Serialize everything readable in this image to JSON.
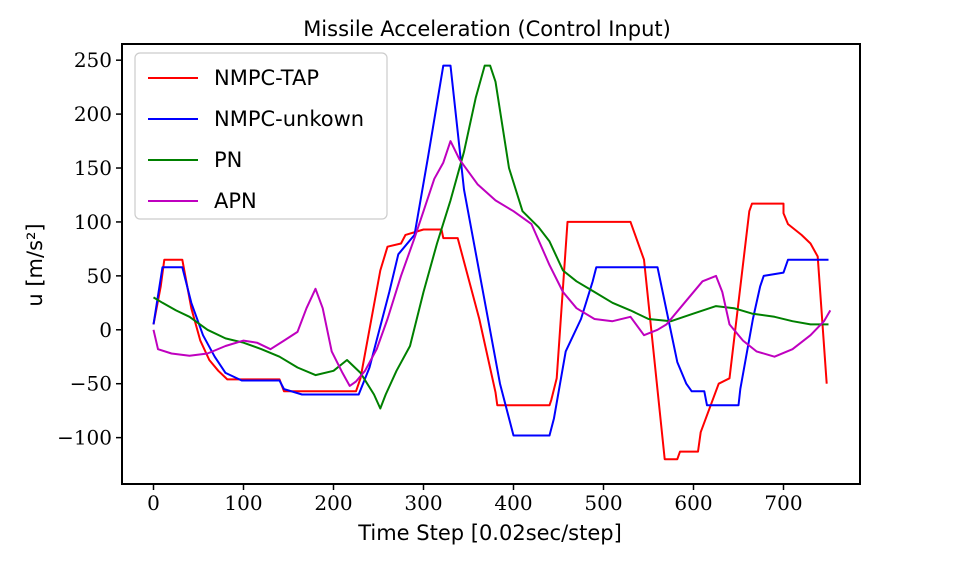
{
  "chart_data": {
    "type": "line",
    "title": "Missile Acceleration (Control Input)",
    "xlabel": "Time Step [0.02sec/step]",
    "ylabel": "u [m/s²]",
    "xlim": [
      -35,
      785
    ],
    "ylim": [
      -143,
      265
    ],
    "xticks": [
      0,
      100,
      200,
      300,
      400,
      500,
      600,
      700
    ],
    "yticks": [
      -100,
      -50,
      0,
      50,
      100,
      150,
      200,
      250
    ],
    "ytick_labels": [
      "−100",
      "−50",
      "0",
      "50",
      "100",
      "150",
      "200",
      "250"
    ],
    "grid": false,
    "legend_position": "top-left",
    "series": [
      {
        "name": "NMPC-TAP",
        "color": "#ff0000",
        "points": [
          [
            0,
            5
          ],
          [
            8,
            40
          ],
          [
            12,
            65
          ],
          [
            32,
            65
          ],
          [
            42,
            20
          ],
          [
            52,
            -10
          ],
          [
            62,
            -28
          ],
          [
            72,
            -38
          ],
          [
            82,
            -46
          ],
          [
            100,
            -46
          ],
          [
            115,
            -46
          ],
          [
            140,
            -46
          ],
          [
            145,
            -57
          ],
          [
            225,
            -57
          ],
          [
            230,
            -45
          ],
          [
            252,
            55
          ],
          [
            260,
            77
          ],
          [
            275,
            80
          ],
          [
            280,
            88
          ],
          [
            300,
            93
          ],
          [
            320,
            93
          ],
          [
            322,
            85
          ],
          [
            338,
            85
          ],
          [
            362,
            10
          ],
          [
            380,
            -58
          ],
          [
            382,
            -70
          ],
          [
            440,
            -70
          ],
          [
            442,
            -65
          ],
          [
            448,
            -45
          ],
          [
            460,
            100
          ],
          [
            530,
            100
          ],
          [
            545,
            65
          ],
          [
            568,
            -120
          ],
          [
            582,
            -120
          ],
          [
            585,
            -113
          ],
          [
            605,
            -113
          ],
          [
            608,
            -95
          ],
          [
            628,
            -50
          ],
          [
            640,
            -45
          ],
          [
            662,
            110
          ],
          [
            665,
            117
          ],
          [
            700,
            117
          ],
          [
            700,
            108
          ],
          [
            705,
            98
          ],
          [
            720,
            88
          ],
          [
            730,
            80
          ],
          [
            738,
            68
          ],
          [
            748,
            -50
          ]
        ]
      },
      {
        "name": "NMPC-unkown",
        "color": "#0000ff",
        "points": [
          [
            0,
            5
          ],
          [
            10,
            58
          ],
          [
            32,
            58
          ],
          [
            42,
            25
          ],
          [
            55,
            -5
          ],
          [
            68,
            -25
          ],
          [
            80,
            -40
          ],
          [
            98,
            -47
          ],
          [
            140,
            -47
          ],
          [
            145,
            -55
          ],
          [
            165,
            -60
          ],
          [
            228,
            -60
          ],
          [
            240,
            -35
          ],
          [
            262,
            35
          ],
          [
            272,
            70
          ],
          [
            290,
            88
          ],
          [
            305,
            160
          ],
          [
            322,
            245
          ],
          [
            330,
            245
          ],
          [
            345,
            130
          ],
          [
            365,
            40
          ],
          [
            385,
            -50
          ],
          [
            400,
            -98
          ],
          [
            440,
            -98
          ],
          [
            445,
            -82
          ],
          [
            458,
            -20
          ],
          [
            475,
            10
          ],
          [
            488,
            45
          ],
          [
            492,
            58
          ],
          [
            560,
            58
          ],
          [
            572,
            10
          ],
          [
            582,
            -30
          ],
          [
            592,
            -50
          ],
          [
            598,
            -57
          ],
          [
            612,
            -57
          ],
          [
            615,
            -70
          ],
          [
            650,
            -70
          ],
          [
            652,
            -55
          ],
          [
            666,
            10
          ],
          [
            674,
            40
          ],
          [
            678,
            50
          ],
          [
            700,
            53
          ],
          [
            705,
            65
          ],
          [
            750,
            65
          ]
        ]
      },
      {
        "name": "PN",
        "color": "#008000",
        "points": [
          [
            0,
            30
          ],
          [
            10,
            25
          ],
          [
            25,
            18
          ],
          [
            40,
            12
          ],
          [
            60,
            0
          ],
          [
            80,
            -8
          ],
          [
            100,
            -12
          ],
          [
            120,
            -18
          ],
          [
            140,
            -25
          ],
          [
            160,
            -35
          ],
          [
            180,
            -42
          ],
          [
            200,
            -38
          ],
          [
            215,
            -28
          ],
          [
            230,
            -40
          ],
          [
            245,
            -60
          ],
          [
            252,
            -73
          ],
          [
            258,
            -60
          ],
          [
            270,
            -38
          ],
          [
            285,
            -15
          ],
          [
            300,
            35
          ],
          [
            315,
            80
          ],
          [
            330,
            120
          ],
          [
            345,
            165
          ],
          [
            358,
            215
          ],
          [
            368,
            245
          ],
          [
            374,
            245
          ],
          [
            380,
            230
          ],
          [
            395,
            150
          ],
          [
            410,
            110
          ],
          [
            428,
            95
          ],
          [
            440,
            82
          ],
          [
            455,
            55
          ],
          [
            470,
            45
          ],
          [
            490,
            35
          ],
          [
            510,
            25
          ],
          [
            530,
            18
          ],
          [
            550,
            10
          ],
          [
            575,
            8
          ],
          [
            600,
            15
          ],
          [
            625,
            22
          ],
          [
            645,
            20
          ],
          [
            665,
            15
          ],
          [
            690,
            12
          ],
          [
            710,
            8
          ],
          [
            730,
            5
          ],
          [
            750,
            5
          ]
        ]
      },
      {
        "name": "APN",
        "color": "#bf00bf",
        "points": [
          [
            0,
            0
          ],
          [
            5,
            -18
          ],
          [
            20,
            -22
          ],
          [
            40,
            -24
          ],
          [
            60,
            -22
          ],
          [
            80,
            -15
          ],
          [
            100,
            -10
          ],
          [
            115,
            -12
          ],
          [
            130,
            -18
          ],
          [
            145,
            -10
          ],
          [
            160,
            -2
          ],
          [
            170,
            20
          ],
          [
            180,
            38
          ],
          [
            188,
            20
          ],
          [
            198,
            -20
          ],
          [
            210,
            -40
          ],
          [
            218,
            -52
          ],
          [
            225,
            -48
          ],
          [
            235,
            -38
          ],
          [
            248,
            -18
          ],
          [
            260,
            10
          ],
          [
            275,
            50
          ],
          [
            290,
            85
          ],
          [
            300,
            110
          ],
          [
            312,
            140
          ],
          [
            322,
            155
          ],
          [
            330,
            175
          ],
          [
            340,
            158
          ],
          [
            360,
            135
          ],
          [
            380,
            120
          ],
          [
            400,
            110
          ],
          [
            420,
            98
          ],
          [
            440,
            60
          ],
          [
            455,
            35
          ],
          [
            470,
            20
          ],
          [
            490,
            10
          ],
          [
            510,
            8
          ],
          [
            530,
            12
          ],
          [
            545,
            -5
          ],
          [
            560,
            0
          ],
          [
            570,
            5
          ],
          [
            590,
            25
          ],
          [
            610,
            45
          ],
          [
            625,
            50
          ],
          [
            632,
            35
          ],
          [
            640,
            5
          ],
          [
            655,
            -10
          ],
          [
            670,
            -20
          ],
          [
            690,
            -25
          ],
          [
            710,
            -18
          ],
          [
            730,
            -5
          ],
          [
            745,
            8
          ],
          [
            752,
            18
          ]
        ]
      }
    ]
  }
}
